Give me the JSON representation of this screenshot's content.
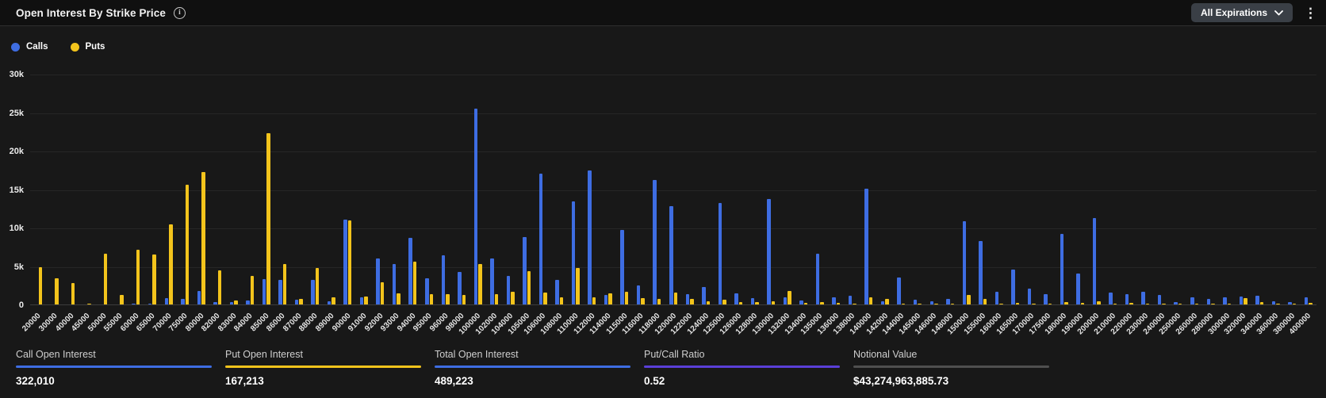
{
  "header": {
    "title": "Open Interest By Strike Price",
    "info_icon": "i",
    "expirations_dropdown": "All Expirations",
    "menu_icon": "⋮"
  },
  "legend": [
    {
      "label": "Calls",
      "color": "#3e6de2"
    },
    {
      "label": "Puts",
      "color": "#f3c41c"
    }
  ],
  "chart_data": {
    "type": "bar",
    "title": "Open Interest By Strike Price",
    "xlabel": "Strike Price",
    "ylabel": "Open Interest",
    "ylim": [
      0,
      30000
    ],
    "ytick_step": 5000,
    "yticks": [
      "0",
      "5k",
      "10k",
      "15k",
      "20k",
      "25k",
      "30k"
    ],
    "grid": true,
    "legend_position": "top-left",
    "categories": [
      "20000",
      "30000",
      "40000",
      "45000",
      "50000",
      "55000",
      "60000",
      "65000",
      "70000",
      "75000",
      "80000",
      "82000",
      "83000",
      "84000",
      "85000",
      "86000",
      "87000",
      "88000",
      "89000",
      "90000",
      "91000",
      "92000",
      "93000",
      "94000",
      "95000",
      "96000",
      "98000",
      "100000",
      "102000",
      "104000",
      "105000",
      "106000",
      "108000",
      "110000",
      "112000",
      "114000",
      "115000",
      "116000",
      "118000",
      "120000",
      "122000",
      "124000",
      "125000",
      "126000",
      "128000",
      "130000",
      "132000",
      "134000",
      "135000",
      "136000",
      "138000",
      "140000",
      "142000",
      "144000",
      "145000",
      "146000",
      "148000",
      "150000",
      "155000",
      "160000",
      "165000",
      "170000",
      "175000",
      "180000",
      "190000",
      "200000",
      "210000",
      "220000",
      "230000",
      "240000",
      "250000",
      "260000",
      "280000",
      "300000",
      "320000",
      "340000",
      "360000",
      "380000",
      "400000"
    ],
    "series": [
      {
        "name": "Calls",
        "color": "#3e6de2",
        "values": [
          0,
          0,
          0,
          0,
          0,
          0,
          100,
          150,
          800,
          700,
          1800,
          300,
          350,
          500,
          3300,
          3200,
          600,
          3200,
          400,
          11000,
          900,
          6000,
          5300,
          8700,
          3400,
          6400,
          4200,
          25500,
          6000,
          3700,
          8800,
          17000,
          3200,
          13400,
          17400,
          1200,
          9700,
          2500,
          16200,
          12800,
          1300,
          2300,
          13200,
          1400,
          800,
          13700,
          900,
          500,
          6600,
          900,
          1100,
          15100,
          400,
          3500,
          600,
          400,
          700,
          10800,
          8200,
          1700,
          4500,
          2100,
          1300,
          9200,
          4000,
          11200,
          1500,
          1300,
          1600,
          1200,
          300,
          900,
          700,
          900,
          1000,
          1100,
          400,
          300,
          900
        ]
      },
      {
        "name": "Puts",
        "color": "#f3c41c",
        "values": [
          4800,
          3400,
          2800,
          150,
          6600,
          1200,
          7100,
          6500,
          10400,
          15600,
          17200,
          4400,
          500,
          3700,
          22300,
          5300,
          700,
          4700,
          900,
          10900,
          1000,
          2900,
          1400,
          5600,
          1300,
          1300,
          1200,
          5300,
          1300,
          1600,
          4300,
          1500,
          900,
          4700,
          900,
          1400,
          1700,
          800,
          700,
          1500,
          700,
          400,
          600,
          300,
          300,
          400,
          1800,
          200,
          300,
          200,
          150,
          900,
          700,
          150,
          100,
          100,
          150,
          1200,
          700,
          150,
          200,
          150,
          100,
          300,
          200,
          400,
          150,
          200,
          100,
          100,
          100,
          150,
          100,
          150,
          800,
          300,
          100,
          100,
          200
        ]
      }
    ]
  },
  "stats": [
    {
      "label": "Call Open Interest",
      "value": "322,010",
      "underline_color": "#3e6de2"
    },
    {
      "label": "Put Open Interest",
      "value": "167,213",
      "underline_color": "#f3c41c"
    },
    {
      "label": "Total Open Interest",
      "value": "489,223",
      "underline_color": "#3e6de2"
    },
    {
      "label": "Put/Call Ratio",
      "value": "0.52",
      "underline_color": "#5a3fd8"
    },
    {
      "label": "Notional Value",
      "value": "$43,274,963,885.73",
      "underline_color": "#4f4f4f"
    }
  ]
}
